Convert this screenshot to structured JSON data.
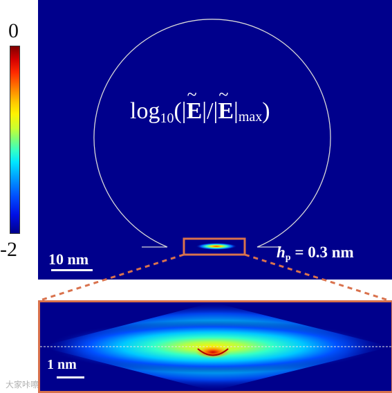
{
  "colorbar": {
    "max_label": "0",
    "min_label": "-2"
  },
  "title": {
    "log": "log",
    "base": "10",
    "open": "(|",
    "E": "E",
    "mid": "|/|",
    "close_e": "|",
    "max_sub": "max",
    "end": ")"
  },
  "main_scale": "10 nm",
  "hp": {
    "symbol": "h",
    "subscript": "p",
    "value": " = 0.3 nm"
  },
  "zoom_scale": "1 nm",
  "watermark": "大家咔嚓",
  "colors": {
    "background": "#00008c",
    "highlight_box": "#d9724d",
    "outline": "#d8d8d8"
  }
}
